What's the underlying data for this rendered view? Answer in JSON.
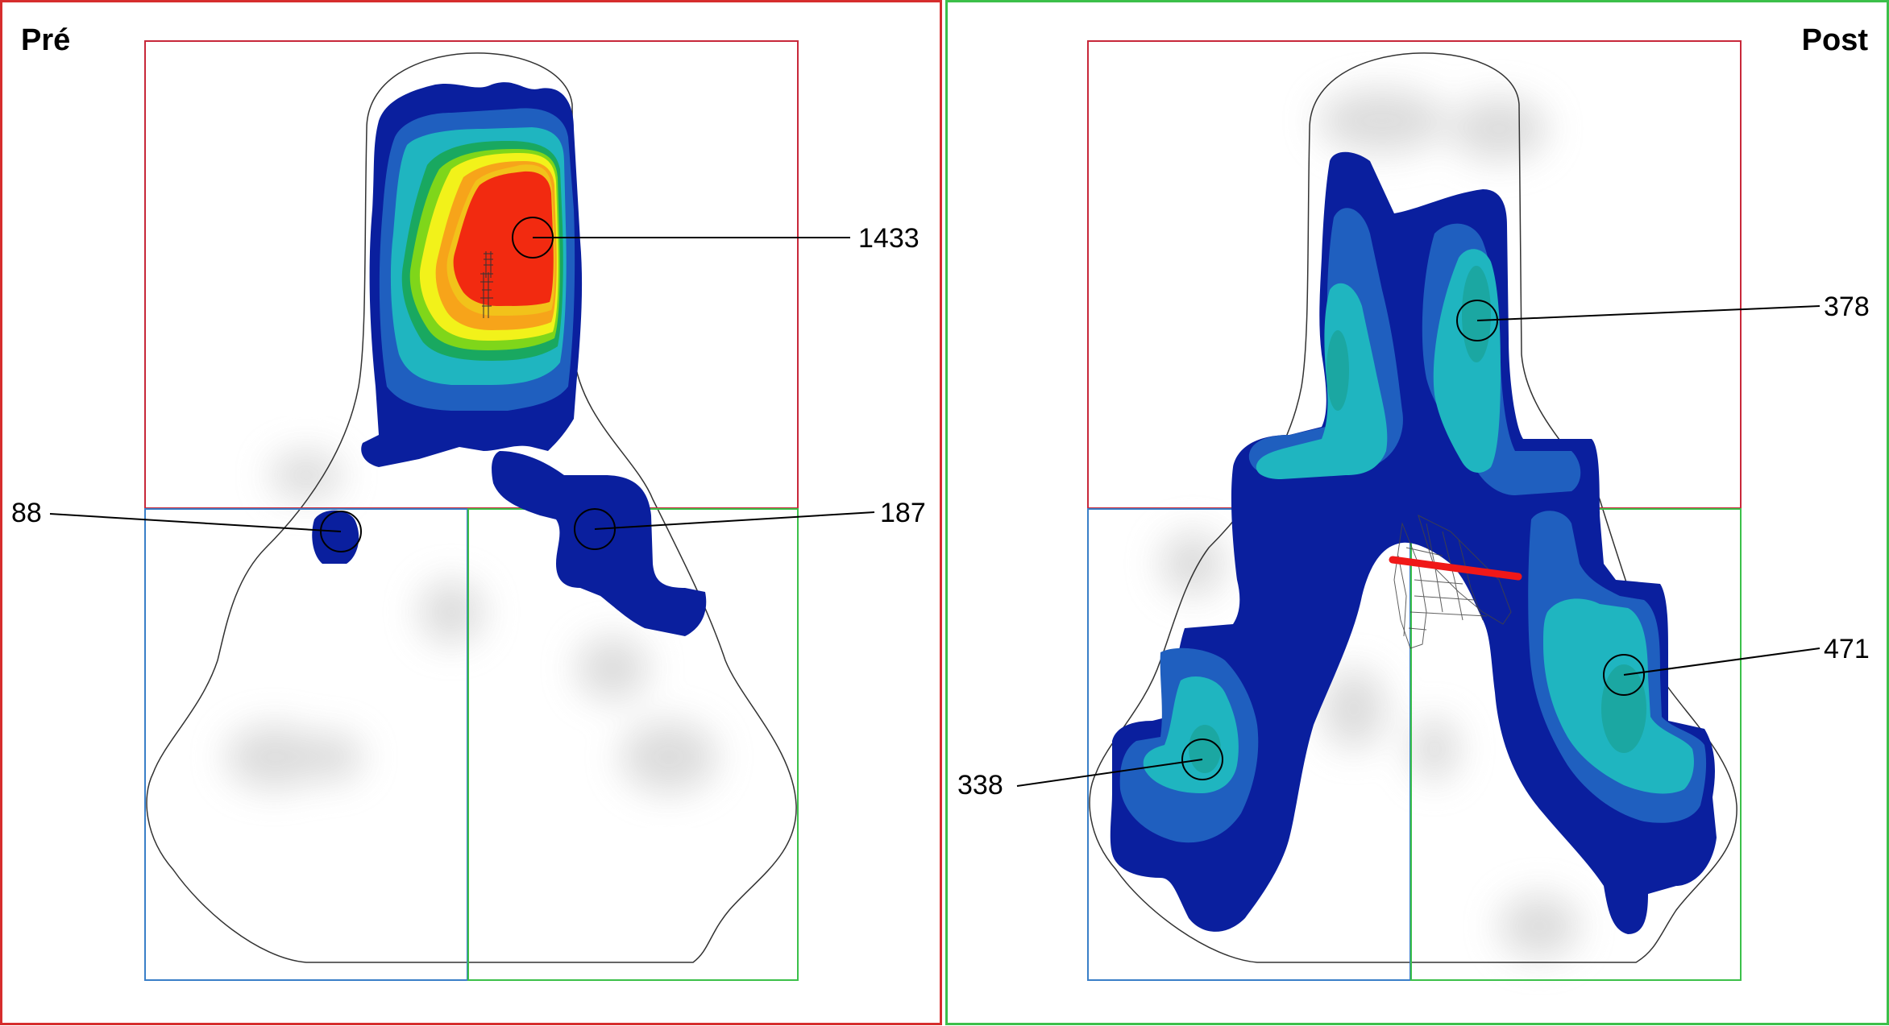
{
  "panels": [
    {
      "title": "Pré",
      "frame_color": "#d62d2d",
      "markers": [
        {
          "label": "1433",
          "zone": "top"
        },
        {
          "label": "88",
          "zone": "bottom-left"
        },
        {
          "label": "187",
          "zone": "bottom-right"
        }
      ]
    },
    {
      "title": "Post",
      "frame_color": "#3cc04a",
      "markers": [
        {
          "label": "378",
          "zone": "top"
        },
        {
          "label": "471",
          "zone": "bottom-right"
        },
        {
          "label": "338",
          "zone": "bottom-left"
        }
      ]
    }
  ],
  "colors": {
    "zone_top": "#c8283a",
    "zone_left": "#3a7fc8",
    "zone_right": "#3cc04a",
    "outline": "#333333",
    "heat_level_1": "#0a1f9e",
    "heat_level_2": "#1f5fbf",
    "heat_level_3": "#1fb5c0",
    "heat_level_4": "#19a860",
    "heat_level_5": "#7fd61a",
    "heat_level_6": "#f2f21a",
    "heat_level_7": "#f7a41a",
    "heat_level_8": "#f22a10",
    "cut_line": "#f01818"
  }
}
